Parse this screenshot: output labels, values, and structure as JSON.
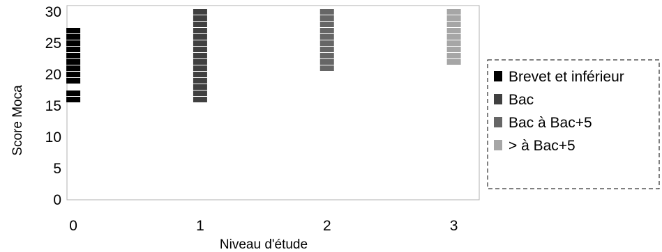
{
  "chart_data": {
    "type": "scatter",
    "xlabel": "Niveau d'étude",
    "ylabel": "Score Moca",
    "xlim": [
      -0.05,
      3.2
    ],
    "ylim": [
      0,
      31
    ],
    "x_ticks": [
      "0",
      "1",
      "2",
      "3"
    ],
    "y_ticks": [
      "0",
      "5",
      "10",
      "15",
      "20",
      "25",
      "30"
    ],
    "grid": false,
    "legend_position": "right",
    "series": [
      {
        "name": "Brevet et inférieur",
        "color": "#000000",
        "x": 0,
        "values": [
          16,
          17,
          19,
          20,
          21,
          22,
          23,
          24,
          25,
          26,
          27
        ]
      },
      {
        "name": "Bac",
        "color": "#404040",
        "x": 1,
        "values": [
          16,
          17,
          18,
          19,
          20,
          21,
          22,
          23,
          24,
          25,
          26,
          27,
          28,
          29,
          30
        ]
      },
      {
        "name": "Bac à Bac+5",
        "color": "#666666",
        "x": 2,
        "values": [
          21,
          22,
          23,
          24,
          25,
          26,
          27,
          28,
          29,
          30
        ]
      },
      {
        "name": "> à Bac+5",
        "color": "#a6a6a6",
        "x": 3,
        "values": [
          22,
          23,
          24,
          25,
          26,
          27,
          28,
          29,
          30
        ]
      }
    ]
  }
}
